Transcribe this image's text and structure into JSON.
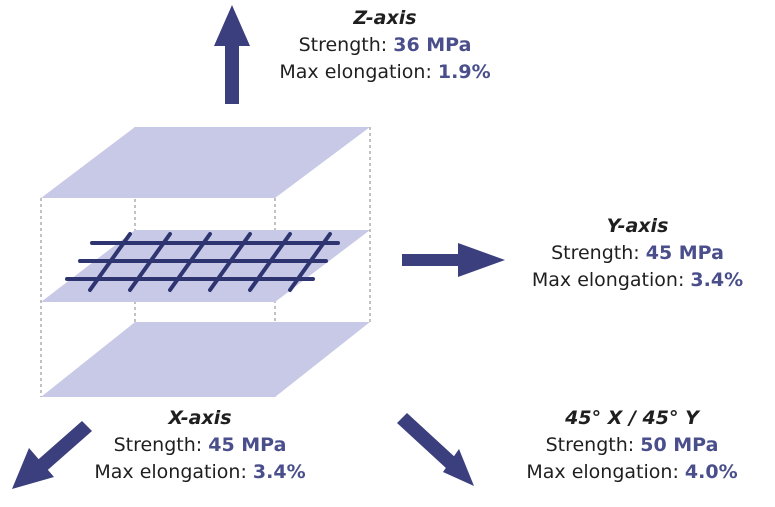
{
  "colors": {
    "arrow": "#3b3f7d",
    "plate": "#c7c9e6",
    "mesh": "#2e3470",
    "value": "#4a4f8c",
    "dash": "#9a9a9a"
  },
  "labels": {
    "z": {
      "title": "Z-axis",
      "strength_label": "Strength:",
      "strength": "36 MPa",
      "elong_label": "Max elongation:",
      "elong": "1.9%"
    },
    "y": {
      "title": "Y-axis",
      "strength_label": "Strength:",
      "strength": "45 MPa",
      "elong_label": "Max elongation:",
      "elong": "3.4%"
    },
    "x": {
      "title": "X-axis",
      "strength_label": "Strength:",
      "strength": "45 MPa",
      "elong_label": "Max elongation:",
      "elong": "3.4%"
    },
    "diag": {
      "title": "45° X / 45° Y",
      "strength_label": "Strength:",
      "strength": "50 MPa",
      "elong_label": "Max elongation:",
      "elong": "4.0%"
    }
  }
}
